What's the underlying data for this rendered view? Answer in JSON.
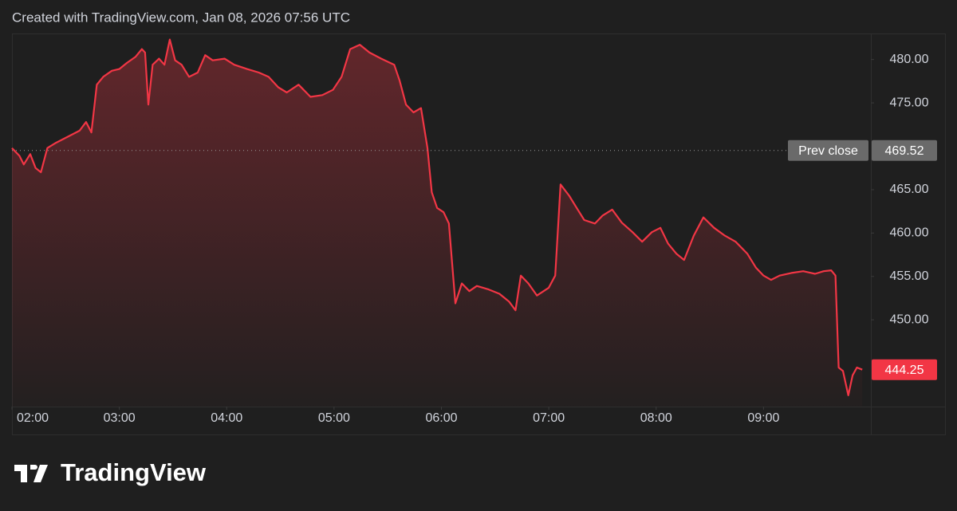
{
  "header": {
    "title": "Created with TradingView.com, Jan 08, 2026 07:56 UTC"
  },
  "footer": {
    "logo": "TradingView"
  },
  "chart_data": {
    "type": "line",
    "x": [
      2.0,
      2.07,
      2.11,
      2.17,
      2.22,
      2.27,
      2.33,
      2.41,
      2.52,
      2.63,
      2.69,
      2.74,
      2.79,
      2.85,
      2.93,
      3.0,
      3.07,
      3.15,
      3.21,
      3.24,
      3.27,
      3.31,
      3.37,
      3.42,
      3.47,
      3.52,
      3.58,
      3.65,
      3.73,
      3.8,
      3.87,
      3.98,
      4.07,
      4.19,
      4.3,
      4.39,
      4.48,
      4.56,
      4.67,
      4.78,
      4.89,
      4.99,
      5.07,
      5.15,
      5.24,
      5.33,
      5.44,
      5.56,
      5.61,
      5.67,
      5.74,
      5.81,
      5.87,
      5.91,
      5.96,
      6.02,
      6.07,
      6.13,
      6.19,
      6.26,
      6.33,
      6.44,
      6.54,
      6.63,
      6.69,
      6.74,
      6.81,
      6.89,
      7.0,
      7.06,
      7.11,
      7.19,
      7.26,
      7.33,
      7.43,
      7.5,
      7.59,
      7.68,
      7.78,
      7.87,
      7.96,
      8.04,
      8.11,
      8.19,
      8.26,
      8.35,
      8.44,
      8.54,
      8.64,
      8.74,
      8.85,
      8.93,
      9.0,
      9.07,
      9.15,
      9.26,
      9.37,
      9.48,
      9.56,
      9.63,
      9.67,
      9.7,
      9.74,
      9.79,
      9.83,
      9.87,
      9.92
    ],
    "values": [
      469.8,
      468.9,
      467.9,
      469.1,
      467.5,
      467.0,
      469.8,
      470.4,
      471.1,
      471.8,
      472.8,
      471.6,
      477.1,
      478.0,
      478.7,
      478.9,
      479.6,
      480.3,
      481.2,
      480.8,
      474.8,
      479.4,
      480.1,
      479.4,
      482.3,
      479.9,
      479.4,
      478.0,
      478.5,
      480.5,
      479.9,
      480.1,
      479.4,
      478.9,
      478.5,
      478.0,
      476.8,
      476.2,
      477.1,
      475.7,
      475.9,
      476.5,
      478.0,
      481.2,
      481.7,
      480.8,
      480.1,
      479.4,
      477.6,
      474.8,
      473.9,
      474.4,
      469.8,
      464.7,
      462.9,
      462.4,
      461.1,
      451.9,
      454.2,
      453.3,
      453.9,
      453.5,
      453.0,
      452.1,
      451.1,
      455.1,
      454.2,
      452.8,
      453.7,
      455.1,
      465.6,
      464.3,
      462.9,
      461.5,
      461.1,
      462.0,
      462.7,
      461.2,
      460.1,
      459.0,
      460.1,
      460.6,
      458.8,
      457.6,
      456.9,
      459.7,
      461.8,
      460.6,
      459.7,
      459.0,
      457.6,
      456.0,
      455.1,
      454.6,
      455.1,
      455.4,
      455.6,
      455.3,
      455.6,
      455.7,
      455.1,
      444.5,
      444.1,
      441.3,
      443.6,
      444.5,
      444.25
    ],
    "color": "#f23645",
    "xlim": [
      2,
      10
    ],
    "xticks": [
      {
        "value": 2,
        "label": "02:00"
      },
      {
        "value": 3,
        "label": "03:00"
      },
      {
        "value": 4,
        "label": "04:00"
      },
      {
        "value": 5,
        "label": "05:00"
      },
      {
        "value": 6,
        "label": "06:00"
      },
      {
        "value": 7,
        "label": "07:00"
      },
      {
        "value": 8,
        "label": "08:00"
      },
      {
        "value": 9,
        "label": "09:00"
      }
    ],
    "ylim": [
      440,
      483
    ],
    "yticks": [
      {
        "value": 450,
        "label": "450.00"
      },
      {
        "value": 455,
        "label": "455.00"
      },
      {
        "value": 460,
        "label": "460.00"
      },
      {
        "value": 465,
        "label": "465.00"
      },
      {
        "value": 475,
        "label": "475.00"
      },
      {
        "value": 480,
        "label": "480.00"
      }
    ],
    "prev_close": {
      "label": "Prev close",
      "value": 469.52
    }
  }
}
